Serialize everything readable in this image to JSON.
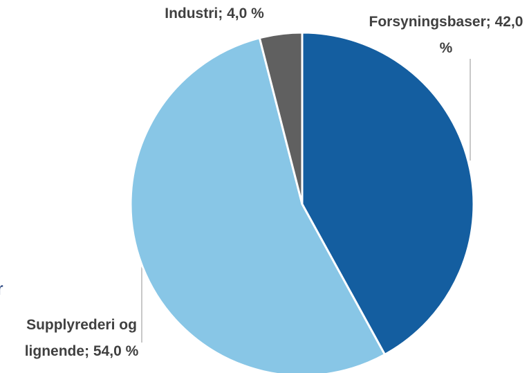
{
  "chart_data": {
    "type": "pie",
    "categories": [
      "Forsyningsbaser",
      "Supplyrederi og lignende",
      "Industri"
    ],
    "values": [
      42,
      54,
      4
    ],
    "value_labels": [
      "42,0 %",
      "54,0 %",
      "4,0 %"
    ],
    "label_separator": "; ",
    "colors": [
      "#145ea0",
      "#88c6e6",
      "#606060"
    ],
    "annotations": [
      "r"
    ]
  }
}
